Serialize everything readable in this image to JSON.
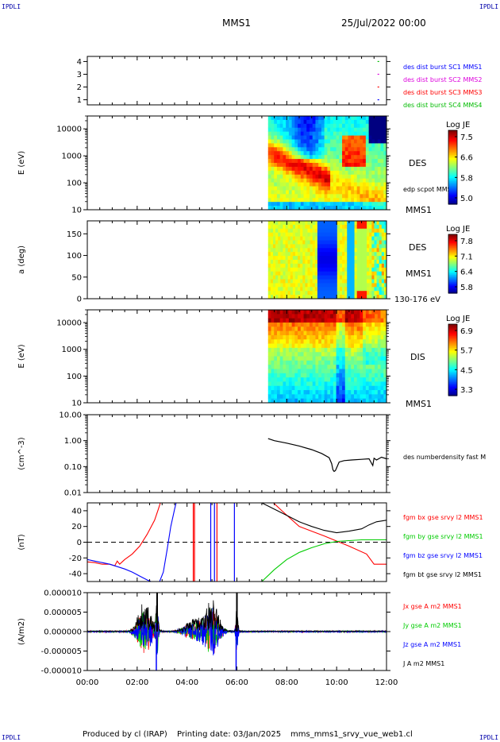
{
  "header": {
    "spacecraft": "MMS1",
    "date": "25/Jul/2022 00:00",
    "corner_tl": "IPDLI",
    "corner_tr": "IPDLI",
    "corner_bl": "IPDLI",
    "corner_br": "IPDLI"
  },
  "footer": {
    "produced_by": "Produced by cl (IRAP)",
    "printing_date": "Printing date: 03/Jan/2025",
    "filename": "mms_mms1_srvy_vue_web1.cl"
  },
  "colors": {
    "mms1": "#0000ff",
    "mms2": "#dd00dd",
    "mms3": "#ff0000",
    "mms4": "#00bb00",
    "bx": "#ff0000",
    "by": "#00cc00",
    "bz": "#0000ff",
    "bt": "#000000"
  },
  "chart_data": [
    {
      "type": "scatter",
      "id": "burst",
      "ylim": [
        0.6,
        4.4
      ],
      "yticks": [
        "1",
        "2",
        "3",
        "4"
      ],
      "legend": [
        "des dist burst SC1 MMS1",
        "des dist burst SC2 MMS2",
        "des dist burst SC3 MMS3",
        "des dist burst SC4 MMS4"
      ],
      "points": [
        {
          "x": 11.45,
          "y": 4,
          "sc": "mms4"
        },
        {
          "x": 11.45,
          "y": 3,
          "sc": "mms2"
        },
        {
          "x": 11.45,
          "y": 2,
          "sc": "mms3"
        },
        {
          "x": 11.45,
          "y": 1,
          "sc": "mms1"
        }
      ]
    },
    {
      "type": "heatmap",
      "id": "des_energy",
      "ylabel": "E (eV)",
      "yscale": "log",
      "ylim": [
        10,
        30000
      ],
      "yticks": [
        "10",
        "100",
        "1000",
        "10000"
      ],
      "label": "DES",
      "overlay_label": "edp scpot MMS1",
      "sublabel": "MMS1",
      "colorbar": {
        "title": "Log JE",
        "ticks": [
          "7.5",
          "6.6",
          "5.8",
          "5.0"
        ],
        "range": [
          5.0,
          7.7
        ]
      },
      "data_start": 7.25
    },
    {
      "type": "heatmap",
      "id": "des_pitch",
      "ylabel": "a (deg)",
      "ylim": [
        0,
        180
      ],
      "yticks": [
        "0",
        "50",
        "100",
        "150"
      ],
      "label": "DES",
      "sublabel": "MMS1",
      "energy_range": "130-176 eV",
      "colorbar": {
        "title": "Log JE",
        "ticks": [
          "7.8",
          "7.1",
          "6.4",
          "5.8"
        ],
        "range": [
          5.8,
          8.0
        ]
      },
      "data_start": 7.25
    },
    {
      "type": "heatmap",
      "id": "dis_energy",
      "ylabel": "E (eV)",
      "yscale": "log",
      "ylim": [
        10,
        30000
      ],
      "yticks": [
        "10",
        "100",
        "1000",
        "10000"
      ],
      "label": "DIS",
      "sublabel": "MMS1",
      "colorbar": {
        "title": "Log JE",
        "ticks": [
          "6.9",
          "5.7",
          "4.5",
          "3.3"
        ],
        "range": [
          3.3,
          7.2
        ]
      },
      "data_start": 7.25
    },
    {
      "type": "line",
      "id": "density",
      "ylabel": "(cm^-3)",
      "yscale": "log",
      "ylim": [
        0.01,
        10
      ],
      "yticks": [
        "0.01",
        "0.10",
        "1.00",
        "10.00"
      ],
      "legend": [
        "des numberdensity fast M"
      ],
      "series": [
        {
          "name": "des numberdensity fast M",
          "color": "#000000",
          "x": [
            7.25,
            7.5,
            8.0,
            8.5,
            9.0,
            9.4,
            9.7,
            9.8,
            9.85,
            9.9,
            9.95,
            10.0,
            10.1,
            10.3,
            10.6,
            11.0,
            11.3,
            11.45,
            11.5,
            11.6,
            11.8,
            12.0
          ],
          "y": [
            1.2,
            1.0,
            0.8,
            0.62,
            0.45,
            0.32,
            0.22,
            0.13,
            0.075,
            0.065,
            0.07,
            0.09,
            0.15,
            0.17,
            0.18,
            0.19,
            0.2,
            0.11,
            0.21,
            0.18,
            0.23,
            0.2
          ]
        }
      ]
    },
    {
      "type": "line",
      "id": "bfield",
      "ylabel": "(nT)",
      "ylim": [
        -50,
        50
      ],
      "yticks": [
        "-40",
        "-20",
        "0",
        "20",
        "40"
      ],
      "legend": [
        "fgm bx gse srvy l2 MMS1",
        "fgm by gse srvy l2 MMS1",
        "fgm bz gse srvy l2 MMS1",
        "fgm bt gse srvy l2 MMS1"
      ],
      "series": [
        {
          "name": "fgm bx gse srvy l2 MMS1",
          "color": "#ff0000",
          "x": [
            0.0,
            0.3,
            0.6,
            0.9,
            1.1,
            1.2,
            1.3,
            1.5,
            1.8,
            2.1,
            2.4,
            2.7,
            2.85,
            2.95,
            3.05,
            7.3,
            7.8,
            8.5,
            9.5,
            10.5,
            11.2,
            11.5,
            12.0
          ],
          "y": [
            -25,
            -26,
            -28,
            -28,
            -30,
            -24,
            -28,
            -22,
            -15,
            -5,
            10,
            28,
            42,
            52,
            60,
            55,
            40,
            20,
            8,
            -5,
            -15,
            -28,
            -28
          ]
        },
        {
          "name": "fgm by gse srvy l2 MMS1",
          "color": "#00cc00",
          "x": [
            7.0,
            7.5,
            8.0,
            8.5,
            9.0,
            9.5,
            10.0,
            10.5,
            11.0,
            11.5,
            12.0
          ],
          "y": [
            -50,
            -35,
            -22,
            -13,
            -7,
            -2,
            1,
            2,
            3,
            3,
            3
          ]
        },
        {
          "name": "fgm bz gse srvy l2 MMS1",
          "color": "#0000ff",
          "x": [
            0.0,
            0.3,
            0.6,
            0.9,
            1.2,
            1.5,
            1.8,
            2.1,
            2.4,
            2.7,
            2.9,
            3.05,
            3.2,
            3.35,
            3.5,
            3.6
          ],
          "y": [
            -22,
            -24,
            -26,
            -28,
            -31,
            -34,
            -38,
            -43,
            -48,
            -52,
            -50,
            -38,
            -10,
            20,
            42,
            55
          ]
        },
        {
          "name": "fgm bt gse srvy l2 MMS1",
          "color": "#000000",
          "x": [
            7.0,
            7.5,
            8.0,
            8.5,
            9.0,
            9.5,
            10.0,
            10.5,
            11.0,
            11.3,
            11.6,
            12.0
          ],
          "y": [
            50,
            42,
            34,
            26,
            20,
            15,
            12,
            14,
            17,
            22,
            26,
            28
          ]
        }
      ]
    },
    {
      "type": "line",
      "id": "current",
      "ylabel": "(A/m2)",
      "ylim": [
        -1e-05,
        1e-05
      ],
      "yticks": [
        "-0.000010",
        "-0.000005",
        "0.000000",
        "0.000005",
        "0.000010"
      ],
      "legend": [
        "Jx gse A m2 MMS1",
        "Jy gse A m2 MMS1",
        "Jz gse A m2 MMS1",
        "J A m2 MMS1"
      ],
      "series_colors": [
        "#ff0000",
        "#00cc00",
        "#0000ff",
        "#000000"
      ],
      "bursts": [
        {
          "x": 2.3,
          "amp": 9.5e-06,
          "width": 0.25
        },
        {
          "x": 2.8,
          "amp": 1e-05,
          "width": 0.04
        },
        {
          "x": 4.3,
          "amp": 4e-06,
          "width": 0.35
        },
        {
          "x": 5.0,
          "amp": 1e-05,
          "width": 0.25
        },
        {
          "x": 6.0,
          "amp": 1e-05,
          "width": 0.04
        }
      ]
    }
  ],
  "time_axis": {
    "xlim": [
      0,
      12
    ],
    "ticks": [
      "00:00",
      "02:00",
      "04:00",
      "06:00",
      "08:00",
      "10:00",
      "12:00"
    ]
  }
}
